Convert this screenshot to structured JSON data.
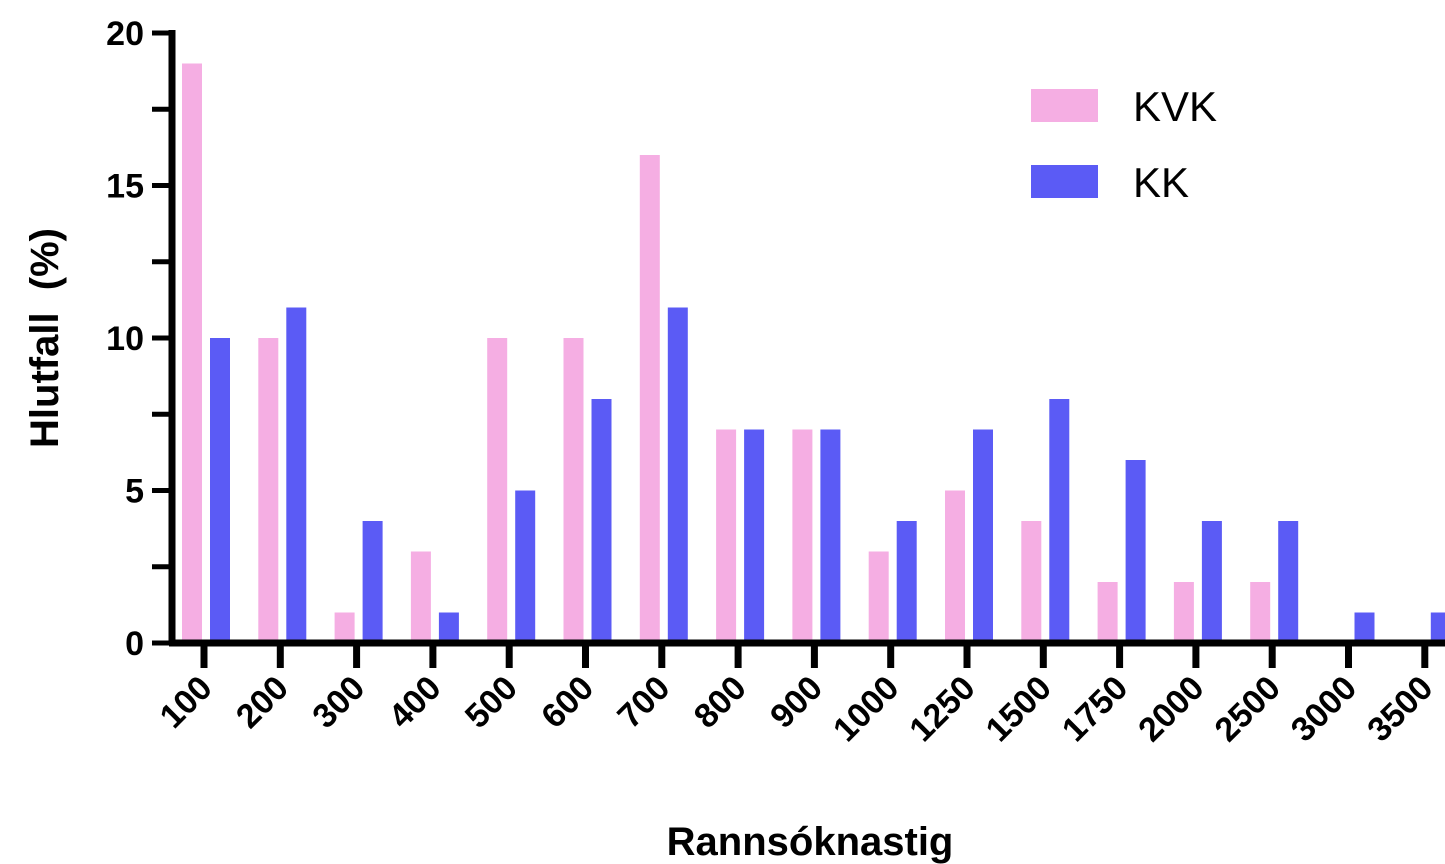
{
  "chart_data": {
    "type": "bar",
    "title": "",
    "xlabel": "Rannsóknastig",
    "ylabel": "Hlutfall  (%)",
    "ylim": [
      0,
      20
    ],
    "yticks": [
      "0",
      "5",
      "10",
      "15",
      "20"
    ],
    "categories": [
      "100",
      "200",
      "300",
      "400",
      "500",
      "600",
      "700",
      "800",
      "900",
      "1000",
      "1250",
      "1500",
      "1750",
      "2000",
      "2500",
      "3000",
      "3500"
    ],
    "series": [
      {
        "name": "KVK",
        "color": "#f5aee3",
        "values": [
          19,
          10,
          1,
          3,
          10,
          10,
          16,
          7,
          7,
          3,
          5,
          4,
          2,
          2,
          2,
          0,
          0
        ]
      },
      {
        "name": "KK",
        "color": "#5b5bf5",
        "values": [
          10,
          11,
          4,
          1,
          5,
          8,
          11,
          7,
          7,
          4,
          7,
          8,
          6,
          4,
          4,
          1,
          1
        ]
      }
    ],
    "legend_position": "top-right",
    "grid": false
  }
}
